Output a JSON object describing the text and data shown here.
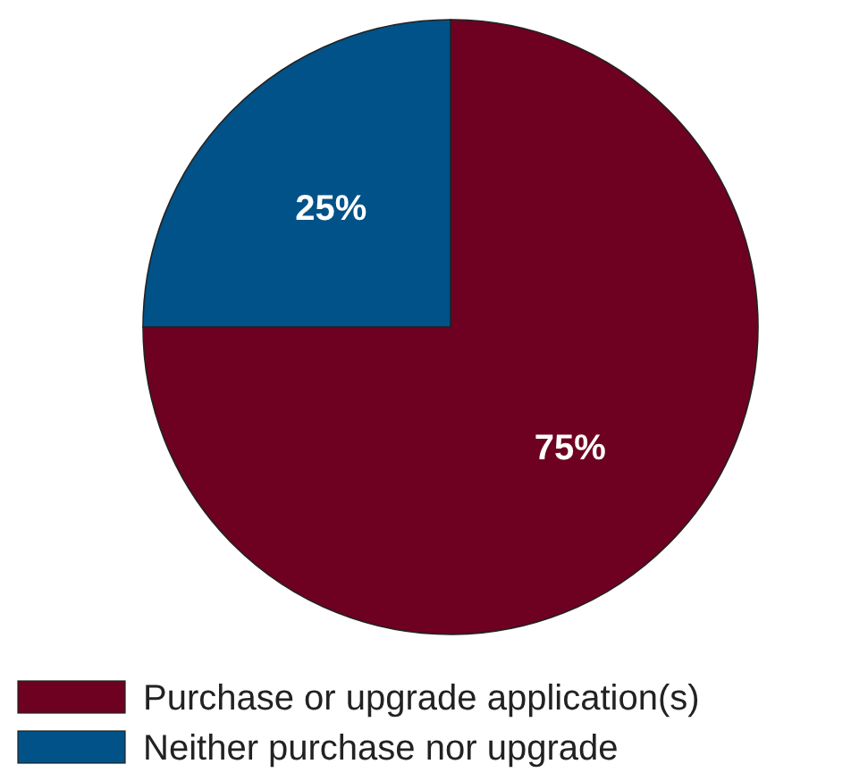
{
  "chart_data": {
    "type": "pie",
    "categories": [
      "Purchase or upgrade application(s)",
      "Neither purchase nor upgrade"
    ],
    "values": [
      75,
      25
    ],
    "colors": [
      "#6e0022",
      "#005288"
    ],
    "value_labels": [
      "75%",
      "25%"
    ],
    "legend": "bottom"
  }
}
